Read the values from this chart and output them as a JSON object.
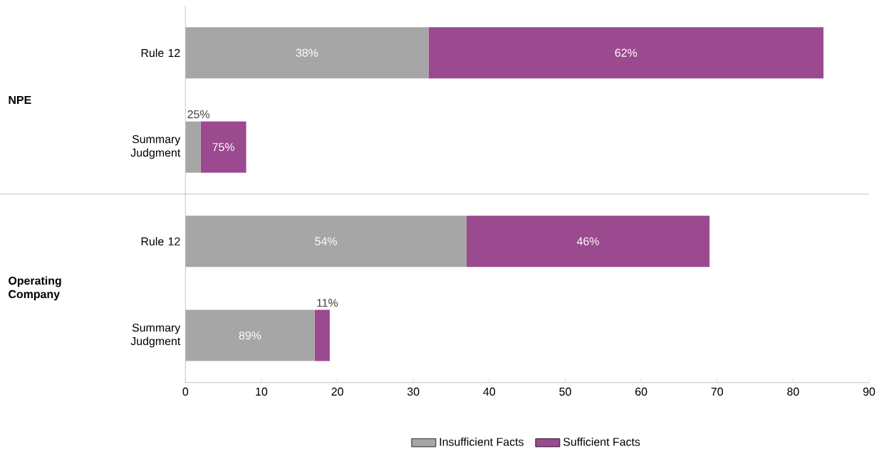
{
  "chart_data": {
    "type": "bar",
    "orientation": "horizontal",
    "stacked": true,
    "categories": [
      "Rule 12",
      "Summary Judgment",
      "Rule 12",
      "Summary Judgment"
    ],
    "series": [
      {
        "name": "Insufficient Facts",
        "color": "#a6a6a6",
        "values": [
          32,
          2,
          37,
          17
        ]
      },
      {
        "name": "Sufficient Facts",
        "color": "#9b4a8f",
        "values": [
          52,
          6,
          32,
          2
        ]
      }
    ],
    "annotations": [
      "NPE",
      "Operating Company",
      "38%",
      "25%",
      "54%",
      "89%",
      "62%",
      "75%",
      "46%",
      "11%"
    ],
    "xlim": [
      0,
      90
    ],
    "xticks": [
      0,
      10,
      20,
      30,
      40,
      50,
      60,
      70,
      80,
      90
    ],
    "legend": "bottom"
  }
}
